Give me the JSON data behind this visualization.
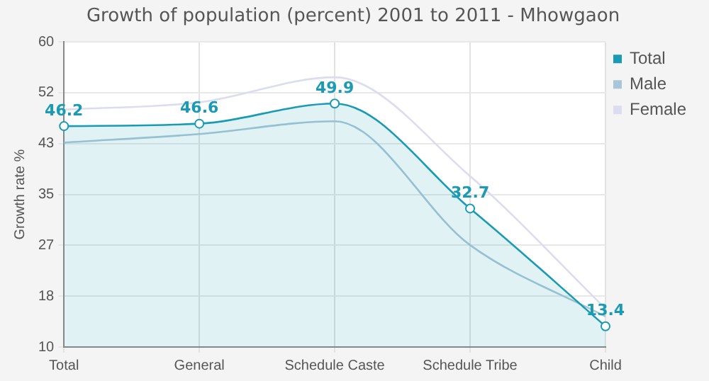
{
  "chart_data": {
    "type": "line",
    "title": "Growth of population (percent) 2001 to 2011 - Mhowgaon",
    "ylabel": "Growth rate %",
    "categories": [
      "Total",
      "General",
      "Schedule Caste",
      "Schedule Tribe",
      "Child"
    ],
    "ylim": [
      10,
      60
    ],
    "yticks": [
      10,
      {
        "value": 18.33,
        "label": "18"
      },
      {
        "value": 26.67,
        "label": "27"
      },
      35,
      {
        "value": 43.33,
        "label": "43"
      },
      {
        "value": 51.67,
        "label": "52"
      },
      60
    ],
    "grid": true,
    "legend": "top right",
    "series": [
      {
        "name": "Total",
        "type": "area",
        "color": "#1a9bb5",
        "marker": "circle",
        "values": [
          46.2,
          46.6,
          49.9,
          32.7,
          13.4
        ],
        "value_labels": [
          "46.2",
          "46.6",
          "49.9",
          "32.7",
          "13.4"
        ]
      },
      {
        "name": "Male",
        "type": "line",
        "color": "#a9c6d8",
        "marker": "none",
        "values": [
          43.5,
          44.9,
          47,
          26.7,
          15
        ]
      },
      {
        "name": "Female",
        "type": "line",
        "color": "#dcdcf0",
        "marker": "none",
        "values": [
          48.9,
          50.1,
          54.2,
          38,
          16.3
        ]
      }
    ]
  }
}
